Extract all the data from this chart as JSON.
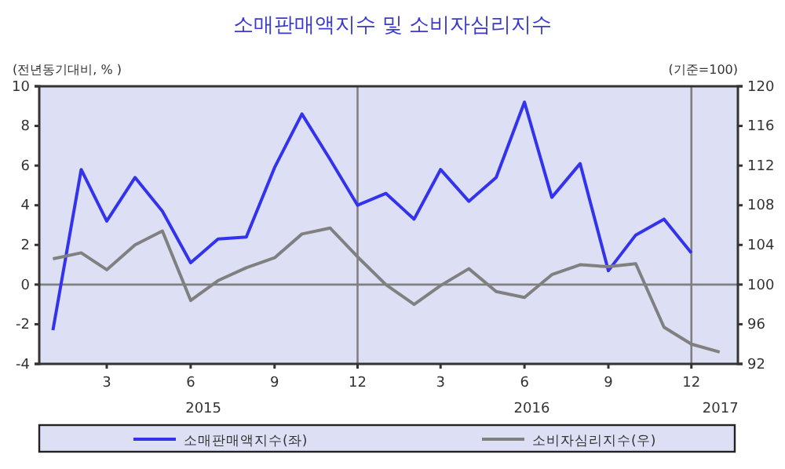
{
  "chart_data": {
    "type": "line",
    "title": "소매판매액지수 및 소비자심리지수",
    "ylabel": "(전년동기대비, % )",
    "y2label": "(기준=100)",
    "x": [
      "2015-01",
      "2015-02",
      "2015-03",
      "2015-04",
      "2015-05",
      "2015-06",
      "2015-07",
      "2015-08",
      "2015-09",
      "2015-10",
      "2015-11",
      "2015-12",
      "2016-01",
      "2016-02",
      "2016-03",
      "2016-04",
      "2016-05",
      "2016-06",
      "2016-07",
      "2016-08",
      "2016-09",
      "2016-10",
      "2016-11",
      "2016-12",
      "2017-01"
    ],
    "xlim": [
      "2014-12-17",
      "2017-01-21"
    ],
    "xticks": [
      {
        "value": "2015-03",
        "label": "3"
      },
      {
        "value": "2015-06",
        "label": "6"
      },
      {
        "value": "2015-09",
        "label": "9"
      },
      {
        "value": "2015-12",
        "label": "12"
      },
      {
        "value": "2016-03",
        "label": "3"
      },
      {
        "value": "2016-06",
        "label": "6"
      },
      {
        "value": "2016-09",
        "label": "9"
      },
      {
        "value": "2016-12",
        "label": "12"
      }
    ],
    "ylim": [
      -4,
      10
    ],
    "yticks": [
      -4,
      -2,
      0,
      2,
      4,
      6,
      8,
      10
    ],
    "y2lim": [
      92,
      120
    ],
    "y2ticks": [
      92,
      96,
      100,
      104,
      108,
      112,
      116,
      120
    ],
    "series": [
      {
        "name": "소매판매액지수(좌)",
        "color": "#3333ee",
        "values": [
          -2.3,
          5.8,
          3.2,
          5.4,
          3.7,
          1.1,
          2.3,
          2.4,
          5.9,
          8.6,
          6.3,
          4.0,
          4.6,
          3.3,
          5.8,
          4.2,
          5.4,
          9.2,
          4.4,
          6.1,
          0.7,
          2.5,
          3.3,
          1.6,
          null
        ]
      },
      {
        "name": "소비자심리지수(우)",
        "color": "#808080",
        "axis": "y2",
        "values": [
          102.6,
          103.2,
          101.5,
          104.0,
          105.4,
          98.4,
          100.4,
          101.7,
          102.7,
          105.1,
          105.7,
          102.8,
          100.0,
          98.0,
          99.9,
          101.6,
          99.3,
          98.7,
          101.0,
          102.0,
          101.8,
          102.1,
          95.7,
          94.0,
          93.2
        ]
      }
    ],
    "ref_lines": [
      {
        "axis": "y",
        "value": 0,
        "color": "#808080"
      },
      {
        "axis": "x",
        "value": "2015-12",
        "color": "#808080"
      },
      {
        "axis": "x",
        "value": "2016-12",
        "color": "#808080"
      }
    ],
    "annotations": [
      "2015",
      "2016",
      "2017"
    ],
    "legend": "bottom",
    "grid": false,
    "marker": "none",
    "line_style": "solid"
  }
}
